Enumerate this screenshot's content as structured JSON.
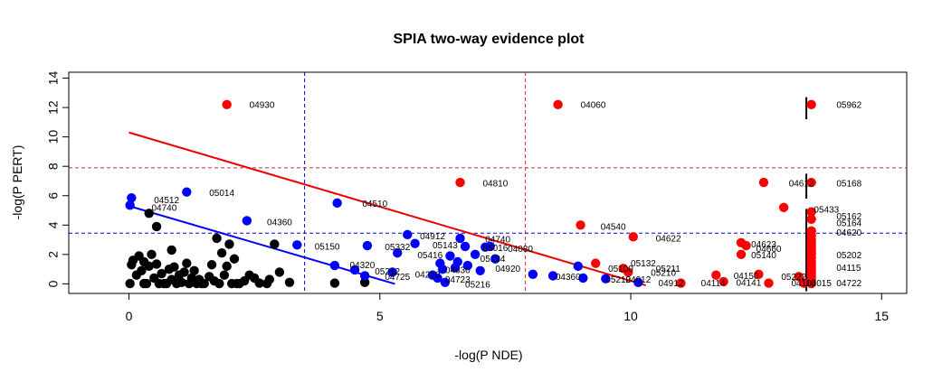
{
  "chart_data": {
    "type": "scatter",
    "title": "SPIA two-way evidence plot",
    "xlabel": "-log(P NDE)",
    "ylabel": "-log(P PERT)",
    "xlim": [
      -1.2,
      15.5
    ],
    "ylim": [
      -0.65,
      14.4
    ],
    "x_ticks": [
      "0",
      "5",
      "10",
      "15"
    ],
    "y_ticks": [
      "0",
      "2",
      "4",
      "6",
      "8",
      "10",
      "12",
      "14"
    ],
    "grid": false,
    "legend": "none",
    "colors": {
      "black": "#000000",
      "blue": "#0000ff",
      "red": "#ff0000",
      "blue_line": "#0000ff",
      "red_line": "#ee0000",
      "blue_ref": "#0000cd",
      "red_ref": "#cd3333"
    },
    "reference_lines": {
      "blue_vertical_x": 3.5,
      "red_vertical_x": 7.9,
      "blue_horizontal_y": 3.45,
      "red_horizontal_y": 7.9
    },
    "fit_lines": {
      "red": {
        "x1": 0,
        "y1": 10.3,
        "x2": 10.3,
        "y2": -0.1
      },
      "blue": {
        "x1": 0,
        "y1": 5.3,
        "x2": 5.3,
        "y2": 0
      }
    },
    "marker_segments": [
      {
        "x": 13.5,
        "y1": 11.2,
        "y2": 12.7
      },
      {
        "x": 13.5,
        "y1": 5.8,
        "y2": 7.5
      },
      {
        "x": 13.5,
        "y1": -0.5,
        "y2": 5.1
      }
    ],
    "black_points": [
      {
        "x": 0.02,
        "y": 0.02
      },
      {
        "x": 0.05,
        "y": 1.3
      },
      {
        "x": 0.08,
        "y": 1.6
      },
      {
        "x": 0.15,
        "y": 0.6
      },
      {
        "x": 0.2,
        "y": 1.9
      },
      {
        "x": 0.25,
        "y": 0.9
      },
      {
        "x": 0.3,
        "y": 1.5
      },
      {
        "x": 0.35,
        "y": 0.02
      },
      {
        "x": 0.4,
        "y": 1.2
      },
      {
        "x": 0.45,
        "y": 2.0
      },
      {
        "x": 0.5,
        "y": 0.4
      },
      {
        "x": 0.55,
        "y": 1.35
      },
      {
        "x": 0.6,
        "y": 0.02
      },
      {
        "x": 0.65,
        "y": 0.7
      },
      {
        "x": 0.75,
        "y": 0.02
      },
      {
        "x": 0.8,
        "y": 1.0
      },
      {
        "x": 0.85,
        "y": 0.3
      },
      {
        "x": 0.9,
        "y": 1.15
      },
      {
        "x": 0.95,
        "y": 0.02
      },
      {
        "x": 1.0,
        "y": 0.6
      },
      {
        "x": 1.05,
        "y": 0.1
      },
      {
        "x": 1.1,
        "y": 0.8
      },
      {
        "x": 1.15,
        "y": 1.4
      },
      {
        "x": 1.2,
        "y": 0.02
      },
      {
        "x": 1.25,
        "y": 0.4
      },
      {
        "x": 1.3,
        "y": 0.9
      },
      {
        "x": 1.35,
        "y": 0.02
      },
      {
        "x": 1.4,
        "y": 0.3
      },
      {
        "x": 1.5,
        "y": 0.02
      },
      {
        "x": 1.6,
        "y": 0.5
      },
      {
        "x": 1.65,
        "y": 1.3
      },
      {
        "x": 1.7,
        "y": 0.2
      },
      {
        "x": 1.75,
        "y": 3.1
      },
      {
        "x": 1.8,
        "y": 0.02
      },
      {
        "x": 1.85,
        "y": 2.1
      },
      {
        "x": 1.9,
        "y": 0.6
      },
      {
        "x": 1.95,
        "y": 1.2
      },
      {
        "x": 2.0,
        "y": 2.7
      },
      {
        "x": 2.05,
        "y": 0.02
      },
      {
        "x": 2.1,
        "y": 1.7
      },
      {
        "x": 2.15,
        "y": 0.02
      },
      {
        "x": 2.3,
        "y": 0.2
      },
      {
        "x": 2.4,
        "y": 0.6
      },
      {
        "x": 2.5,
        "y": 0.4
      },
      {
        "x": 2.6,
        "y": 0.05
      },
      {
        "x": 2.75,
        "y": 0.02
      },
      {
        "x": 2.8,
        "y": 0.3
      },
      {
        "x": 2.9,
        "y": 2.7
      },
      {
        "x": 3.0,
        "y": 0.8
      },
      {
        "x": 3.2,
        "y": 0.1
      },
      {
        "x": 0.4,
        "y": 4.8
      },
      {
        "x": 0.55,
        "y": 3.9
      },
      {
        "x": 0.85,
        "y": 2.3
      },
      {
        "x": 4.1,
        "y": 0.05
      },
      {
        "x": 4.7,
        "y": 0.1
      },
      {
        "x": 0.3,
        "y": 0.02
      },
      {
        "x": 0.7,
        "y": 0.02
      },
      {
        "x": 1.45,
        "y": 0.02
      },
      {
        "x": 2.2,
        "y": 0.02
      }
    ],
    "blue_points": [
      {
        "x": 0.02,
        "y": 5.35
      },
      {
        "x": 0.05,
        "y": 5.85
      },
      {
        "x": 1.15,
        "y": 6.25
      },
      {
        "x": 2.35,
        "y": 4.3
      },
      {
        "x": 3.35,
        "y": 2.65
      },
      {
        "x": 4.1,
        "y": 1.25
      },
      {
        "x": 4.15,
        "y": 5.5
      },
      {
        "x": 4.5,
        "y": 0.95
      },
      {
        "x": 4.7,
        "y": 0.55
      },
      {
        "x": 4.75,
        "y": 2.6
      },
      {
        "x": 5.25,
        "y": 0.8
      },
      {
        "x": 5.35,
        "y": 2.1
      },
      {
        "x": 5.55,
        "y": 3.35
      },
      {
        "x": 5.7,
        "y": 2.75
      },
      {
        "x": 6.05,
        "y": 0.6
      },
      {
        "x": 6.15,
        "y": 0.4
      },
      {
        "x": 6.2,
        "y": 1.4
      },
      {
        "x": 6.25,
        "y": 1.0
      },
      {
        "x": 6.3,
        "y": 0.1
      },
      {
        "x": 6.4,
        "y": 1.9
      },
      {
        "x": 6.5,
        "y": 1.1
      },
      {
        "x": 6.55,
        "y": 1.5
      },
      {
        "x": 6.6,
        "y": 3.1
      },
      {
        "x": 6.7,
        "y": 2.55
      },
      {
        "x": 6.75,
        "y": 1.25
      },
      {
        "x": 6.9,
        "y": 2.0
      },
      {
        "x": 7.0,
        "y": 0.9
      },
      {
        "x": 7.1,
        "y": 2.5
      },
      {
        "x": 7.2,
        "y": 2.55
      },
      {
        "x": 7.3,
        "y": 1.7
      },
      {
        "x": 8.05,
        "y": 0.65
      },
      {
        "x": 8.45,
        "y": 0.55
      },
      {
        "x": 8.95,
        "y": 1.2
      },
      {
        "x": 9.05,
        "y": 0.4
      },
      {
        "x": 9.5,
        "y": 0.35
      },
      {
        "x": 10.15,
        "y": 0.1
      }
    ],
    "red_points": [
      {
        "x": 1.95,
        "y": 12.2
      },
      {
        "x": 8.55,
        "y": 12.2
      },
      {
        "x": 13.6,
        "y": 12.2
      },
      {
        "x": 6.6,
        "y": 6.9
      },
      {
        "x": 12.65,
        "y": 6.9
      },
      {
        "x": 13.6,
        "y": 6.9
      },
      {
        "x": 9.0,
        "y": 4.0
      },
      {
        "x": 10.05,
        "y": 3.2
      },
      {
        "x": 13.05,
        "y": 5.2
      },
      {
        "x": 12.2,
        "y": 2.8
      },
      {
        "x": 12.3,
        "y": 2.6
      },
      {
        "x": 12.2,
        "y": 2.0
      },
      {
        "x": 9.3,
        "y": 1.4
      },
      {
        "x": 9.85,
        "y": 1.05
      },
      {
        "x": 9.95,
        "y": 0.8
      },
      {
        "x": 11.0,
        "y": 0.05
      },
      {
        "x": 11.7,
        "y": 0.6
      },
      {
        "x": 11.85,
        "y": 0.15
      },
      {
        "x": 12.55,
        "y": 0.65
      },
      {
        "x": 12.75,
        "y": 0.05
      },
      {
        "x": 13.35,
        "y": 0.5
      },
      {
        "x": 13.45,
        "y": 0.05
      },
      {
        "x": 13.6,
        "y": 4.9
      },
      {
        "x": 13.6,
        "y": 4.4
      },
      {
        "x": 13.6,
        "y": 3.6
      },
      {
        "x": 13.6,
        "y": 3.3
      },
      {
        "x": 13.6,
        "y": 3.0
      },
      {
        "x": 13.6,
        "y": 2.8
      },
      {
        "x": 13.6,
        "y": 2.6
      },
      {
        "x": 13.6,
        "y": 2.4
      },
      {
        "x": 13.6,
        "y": 2.2
      },
      {
        "x": 13.6,
        "y": 2.0
      },
      {
        "x": 13.6,
        "y": 1.8
      },
      {
        "x": 13.6,
        "y": 1.5
      },
      {
        "x": 13.6,
        "y": 1.3
      },
      {
        "x": 13.6,
        "y": 1.1
      },
      {
        "x": 13.6,
        "y": 0.9
      },
      {
        "x": 13.6,
        "y": 0.7
      },
      {
        "x": 13.6,
        "y": 0.5
      },
      {
        "x": 13.6,
        "y": 0.3
      },
      {
        "x": 13.6,
        "y": 0.15
      },
      {
        "x": 13.6,
        "y": 0.02
      }
    ],
    "point_labels": [
      {
        "text": "04930",
        "x": 2.4,
        "y": 12.2
      },
      {
        "text": "04060",
        "x": 9.0,
        "y": 12.2
      },
      {
        "text": "05962",
        "x": 14.1,
        "y": 12.2
      },
      {
        "text": "04810",
        "x": 7.05,
        "y": 6.85
      },
      {
        "text": "04612",
        "x": 13.15,
        "y": 6.85
      },
      {
        "text": "05168",
        "x": 14.1,
        "y": 6.85
      },
      {
        "text": "05014",
        "x": 1.6,
        "y": 6.2
      },
      {
        "text": "04512",
        "x": 0.5,
        "y": 5.7
      },
      {
        "text": "04740",
        "x": 0.45,
        "y": 5.2
      },
      {
        "text": "04510",
        "x": 4.65,
        "y": 5.45
      },
      {
        "text": "04360",
        "x": 2.75,
        "y": 4.2
      },
      {
        "text": "05433",
        "x": 13.65,
        "y": 5.05
      },
      {
        "text": "05162",
        "x": 14.1,
        "y": 4.6
      },
      {
        "text": "05164",
        "x": 14.1,
        "y": 4.15
      },
      {
        "text": "04540",
        "x": 9.4,
        "y": 3.9
      },
      {
        "text": "04622",
        "x": 10.5,
        "y": 3.1
      },
      {
        "text": "04620",
        "x": 14.1,
        "y": 3.5
      },
      {
        "text": "04623",
        "x": 12.4,
        "y": 2.7
      },
      {
        "text": "04660",
        "x": 12.5,
        "y": 2.4
      },
      {
        "text": "05140",
        "x": 12.4,
        "y": 1.95
      },
      {
        "text": "05202",
        "x": 14.1,
        "y": 1.95
      },
      {
        "text": "04912",
        "x": 5.8,
        "y": 3.25
      },
      {
        "text": "04740",
        "x": 7.1,
        "y": 3.05
      },
      {
        "text": "05143",
        "x": 6.05,
        "y": 2.65
      },
      {
        "text": "05016",
        "x": 7.05,
        "y": 2.45
      },
      {
        "text": "04080",
        "x": 7.55,
        "y": 2.4
      },
      {
        "text": "05150",
        "x": 3.7,
        "y": 2.55
      },
      {
        "text": "05332",
        "x": 5.1,
        "y": 2.5
      },
      {
        "text": "05416",
        "x": 5.75,
        "y": 1.95
      },
      {
        "text": "05134",
        "x": 7.0,
        "y": 1.7
      },
      {
        "text": "04320",
        "x": 4.4,
        "y": 1.3
      },
      {
        "text": "04920",
        "x": 7.3,
        "y": 1.05
      },
      {
        "text": "04630",
        "x": 6.3,
        "y": 0.95
      },
      {
        "text": "05212",
        "x": 4.9,
        "y": 0.85
      },
      {
        "text": "04725",
        "x": 5.1,
        "y": 0.5
      },
      {
        "text": "04210",
        "x": 5.7,
        "y": 0.65
      },
      {
        "text": "04723",
        "x": 6.3,
        "y": 0.3
      },
      {
        "text": "05216",
        "x": 6.7,
        "y": -0.05
      },
      {
        "text": "04360",
        "x": 8.5,
        "y": 0.5
      },
      {
        "text": "05132",
        "x": 10.0,
        "y": 1.4
      },
      {
        "text": "05100",
        "x": 9.55,
        "y": 1.05
      },
      {
        "text": "05211",
        "x": 10.5,
        "y": 1.05
      },
      {
        "text": "05210",
        "x": 10.4,
        "y": 0.75
      },
      {
        "text": "04012",
        "x": 9.9,
        "y": 0.3
      },
      {
        "text": "05212",
        "x": 9.5,
        "y": 0.3
      },
      {
        "text": "04912",
        "x": 10.55,
        "y": 0.05
      },
      {
        "text": "04114",
        "x": 11.4,
        "y": 0.05
      },
      {
        "text": "04150",
        "x": 12.05,
        "y": 0.55
      },
      {
        "text": "04141",
        "x": 12.1,
        "y": 0.1
      },
      {
        "text": "05222",
        "x": 13.0,
        "y": 0.5
      },
      {
        "text": "04015",
        "x": 13.5,
        "y": 0.05
      },
      {
        "text": "04110",
        "x": 13.2,
        "y": 0.05
      },
      {
        "text": "04115",
        "x": 14.1,
        "y": 1.1
      },
      {
        "text": "04722",
        "x": 14.1,
        "y": 0.05
      }
    ]
  }
}
